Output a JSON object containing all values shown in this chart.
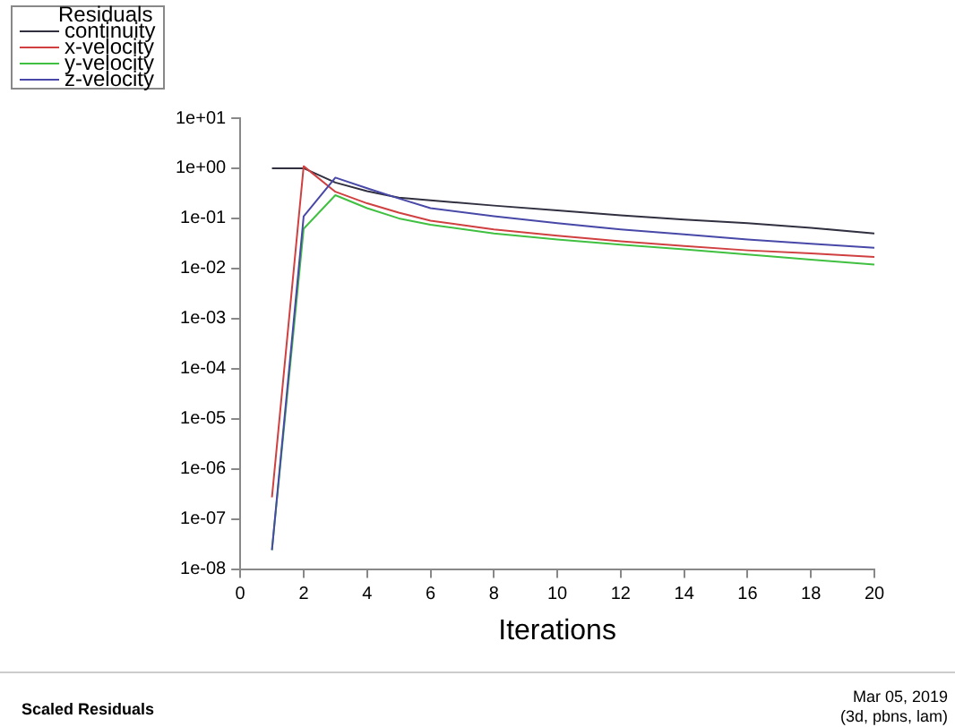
{
  "chart_data": {
    "type": "line",
    "xlabel": "Iterations",
    "legend_title": "Residuals",
    "legend": "top left",
    "log": "y",
    "grid": false,
    "marker": "none",
    "line_style": "solid",
    "xlim": [
      0,
      20
    ],
    "xticks": [
      0,
      2,
      4,
      6,
      8,
      10,
      12,
      14,
      16,
      18,
      20
    ],
    "ylim": [
      1e-08,
      10
    ],
    "yticks": [
      {
        "value": 1e-08,
        "label": "1e-08"
      },
      {
        "value": 1e-07,
        "label": "1e-07"
      },
      {
        "value": 1e-06,
        "label": "1e-06"
      },
      {
        "value": 1e-05,
        "label": "1e-05"
      },
      {
        "value": 0.0001,
        "label": "1e-04"
      },
      {
        "value": 0.001,
        "label": "1e-03"
      },
      {
        "value": 0.01,
        "label": "1e-02"
      },
      {
        "value": 0.1,
        "label": "1e-01"
      },
      {
        "value": 1,
        "label": "1e+00"
      },
      {
        "value": 10,
        "label": "1e+01"
      }
    ],
    "x": [
      1,
      2,
      3,
      4,
      5,
      6,
      8,
      10,
      12,
      14,
      16,
      18,
      20
    ],
    "series": [
      {
        "name": "continuity",
        "color": "#303040",
        "values": [
          1,
          1,
          0.52,
          0.35,
          0.26,
          0.23,
          0.18,
          0.145,
          0.115,
          0.095,
          0.08,
          0.065,
          0.05
        ]
      },
      {
        "name": "x-velocity",
        "color": "#d04040",
        "values": [
          2.7e-07,
          1.1,
          0.34,
          0.2,
          0.13,
          0.09,
          0.06,
          0.045,
          0.035,
          0.028,
          0.023,
          0.02,
          0.017
        ]
      },
      {
        "name": "y-velocity",
        "color": "#40c040",
        "values": [
          2.4e-08,
          0.062,
          0.29,
          0.16,
          0.1,
          0.075,
          0.05,
          0.038,
          0.03,
          0.024,
          0.019,
          0.015,
          0.012
        ]
      },
      {
        "name": "z-velocity",
        "color": "#4848a8",
        "values": [
          2.4e-08,
          0.11,
          0.65,
          0.4,
          0.25,
          0.16,
          0.11,
          0.08,
          0.06,
          0.048,
          0.038,
          0.031,
          0.026
        ]
      }
    ],
    "annotations": [
      "Scaled Residuals",
      "Mar 05, 2019",
      "(3d, pbns, lam)"
    ]
  }
}
